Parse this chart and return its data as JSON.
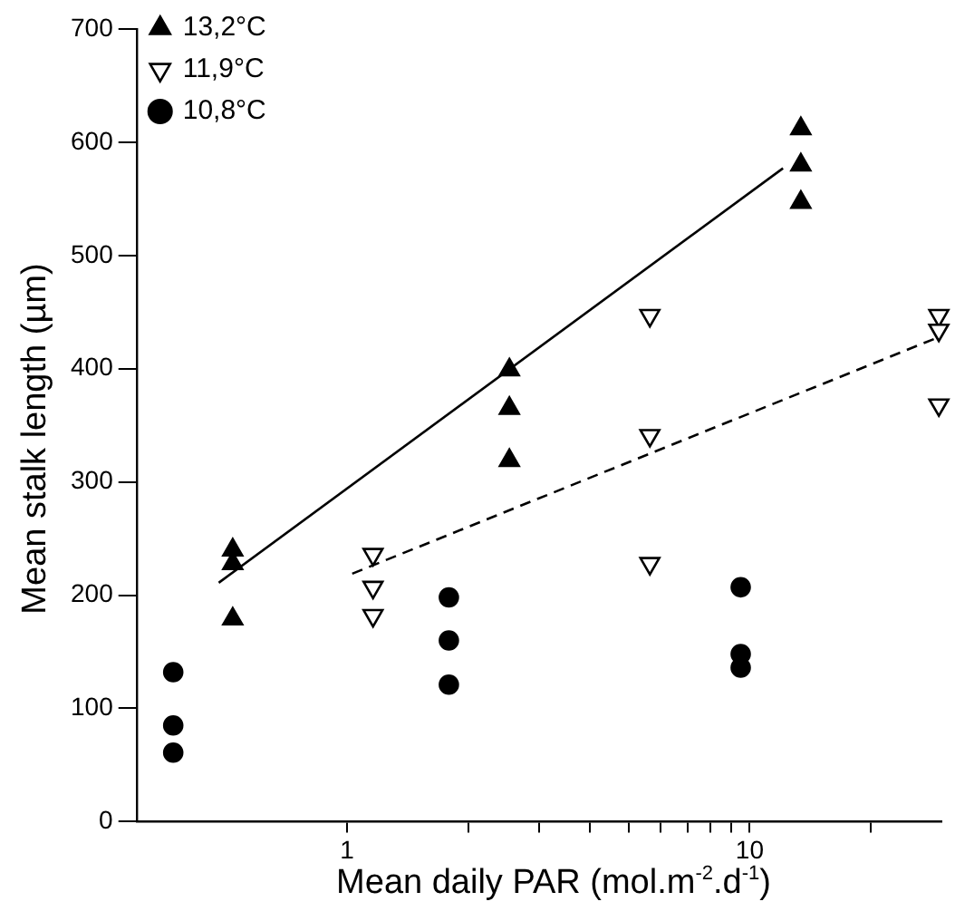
{
  "chart_data": {
    "type": "scatter",
    "xlabel": "Mean daily PAR (mol.m$^{-2}$.d$^{-1}$)",
    "ylabel": "Mean stalk length (µm)",
    "log": "x",
    "xlim": [
      0.3,
      30
    ],
    "ylim": [
      0,
      700
    ],
    "xticks": [
      {
        "value": 1,
        "label": "1"
      },
      {
        "value": 2,
        "label": null
      },
      {
        "value": 3,
        "label": null
      },
      {
        "value": 4,
        "label": null
      },
      {
        "value": 5,
        "label": null
      },
      {
        "value": 6,
        "label": null
      },
      {
        "value": 7,
        "label": null
      },
      {
        "value": 8,
        "label": null
      },
      {
        "value": 9,
        "label": null
      },
      {
        "value": 10,
        "label": "10"
      },
      {
        "value": 20,
        "label": null
      }
    ],
    "yticks": [
      0,
      100,
      200,
      300,
      400,
      500,
      600,
      700
    ],
    "grid": false,
    "legend": "top left",
    "series": [
      {
        "name": "13,2°C",
        "color": "#000000",
        "marker": "triangle",
        "x": [
          0.52,
          0.52,
          0.52,
          2.53,
          2.53,
          2.53,
          13.4,
          13.4,
          13.4
        ],
        "values": [
          240,
          228,
          179,
          399,
          365,
          319,
          612,
          580,
          547
        ]
      },
      {
        "name": "11,9°C",
        "color": "#000000",
        "marker": "triangle-down",
        "x": [
          1.16,
          1.16,
          1.16,
          5.65,
          5.65,
          5.65,
          29.5,
          29.5,
          29.5
        ],
        "values": [
          236,
          207,
          182,
          447,
          341,
          228,
          447,
          434,
          368
        ]
      },
      {
        "name": "10,8°C",
        "color": "#000000",
        "marker": "circle",
        "x": [
          0.37,
          0.37,
          0.37,
          1.79,
          1.79,
          1.79,
          9.5,
          9.5,
          9.5
        ],
        "values": [
          132,
          85,
          61,
          198,
          160,
          121,
          207,
          148,
          136
        ]
      },
      {
        "type": "line",
        "color": "#000000",
        "line_style": "solid",
        "x": [
          0.48,
          12.1
        ],
        "values": [
          211,
          577
        ]
      },
      {
        "type": "line",
        "color": "#000000",
        "line_style": "dashed",
        "x": [
          1.03,
          30
        ],
        "values": [
          219,
          429
        ]
      }
    ]
  }
}
